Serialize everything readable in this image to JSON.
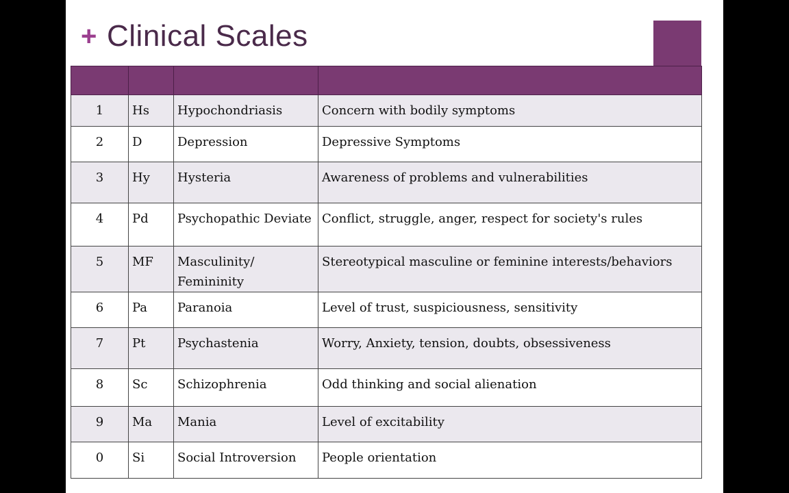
{
  "slide": {
    "title": "Clinical Scales",
    "bullet": "+"
  },
  "colors": {
    "accent": "#7a3a72",
    "bullet": "#9b3f8f",
    "title_text": "#4a2a4a",
    "band_row": "#ebe8ee"
  },
  "table": {
    "rows": [
      {
        "num": "1",
        "abbr": "Hs",
        "scale": "Hypochondriasis",
        "description": "Concern with bodily symptoms"
      },
      {
        "num": "2",
        "abbr": "D",
        "scale": "Depression",
        "description": "Depressive Symptoms"
      },
      {
        "num": "3",
        "abbr": "Hy",
        "scale": "Hysteria",
        "description": "Awareness of problems and vulnerabilities"
      },
      {
        "num": "4",
        "abbr": "Pd",
        "scale": "Psychopathic Deviate",
        "description": "Conflict, struggle, anger, respect for society's rules"
      },
      {
        "num": "5",
        "abbr": "MF",
        "scale": "Masculinity/ Femininity",
        "description": "Stereotypical masculine or feminine interests/behaviors"
      },
      {
        "num": "6",
        "abbr": "Pa",
        "scale": "Paranoia",
        "description": "Level of trust, suspiciousness, sensitivity"
      },
      {
        "num": "7",
        "abbr": "Pt",
        "scale": "Psychastenia",
        "description": "Worry, Anxiety, tension, doubts, obsessiveness"
      },
      {
        "num": "8",
        "abbr": "Sc",
        "scale": "Schizophrenia",
        "description": "Odd thinking and social alienation"
      },
      {
        "num": "9",
        "abbr": "Ma",
        "scale": "Mania",
        "description": "Level of excitability"
      },
      {
        "num": "0",
        "abbr": "Si",
        "scale": "Social Introversion",
        "description": "People orientation"
      }
    ]
  }
}
